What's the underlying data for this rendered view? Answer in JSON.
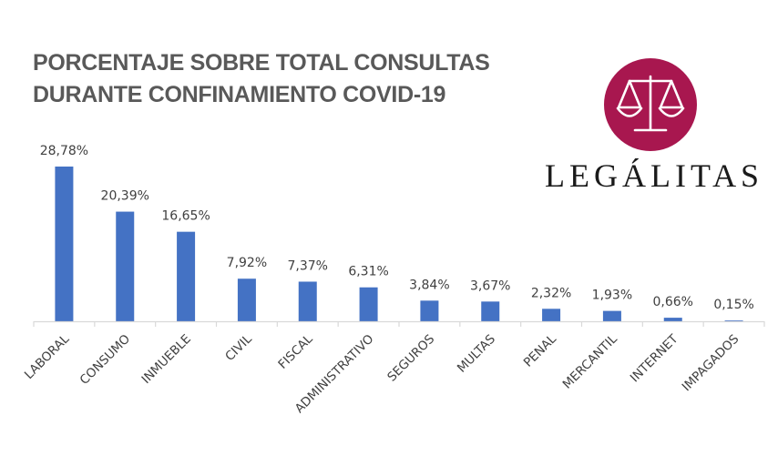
{
  "title": {
    "line1": "PORCENTAJE SOBRE TOTAL CONSULTAS",
    "line2": "DURANTE CONFINAMIENTO COVID-19"
  },
  "logo": {
    "icon": "scales-of-justice-icon",
    "wordmark": "LEGÁLITAS",
    "brand_color": "#a8174f"
  },
  "chart_data": {
    "type": "bar",
    "title": "PORCENTAJE SOBRE TOTAL CONSULTAS DURANTE CONFINAMIENTO COVID-19",
    "xlabel": "",
    "ylabel": "",
    "categories": [
      "LABORAL",
      "CONSUMO",
      "INMUEBLE",
      "CIVIL",
      "FISCAL",
      "ADMINISTRATIVO",
      "SEGUROS",
      "MULTAS",
      "PENAL",
      "MERCANTIL",
      "INTERNET",
      "IMPAGADOS"
    ],
    "values": [
      28.78,
      20.39,
      16.65,
      7.92,
      7.37,
      6.31,
      3.84,
      3.67,
      2.32,
      1.93,
      0.66,
      0.15
    ],
    "data_labels": [
      "28,78%",
      "20,39%",
      "16,65%",
      "7,92%",
      "7,37%",
      "6,31%",
      "3,84%",
      "3,67%",
      "2,32%",
      "1,93%",
      "0,66%",
      "0,15%"
    ],
    "ylim": [
      0,
      30
    ],
    "grid": false,
    "legend": "none",
    "bar_color": "#4472c4",
    "axis_color": "#d9d9d9"
  }
}
